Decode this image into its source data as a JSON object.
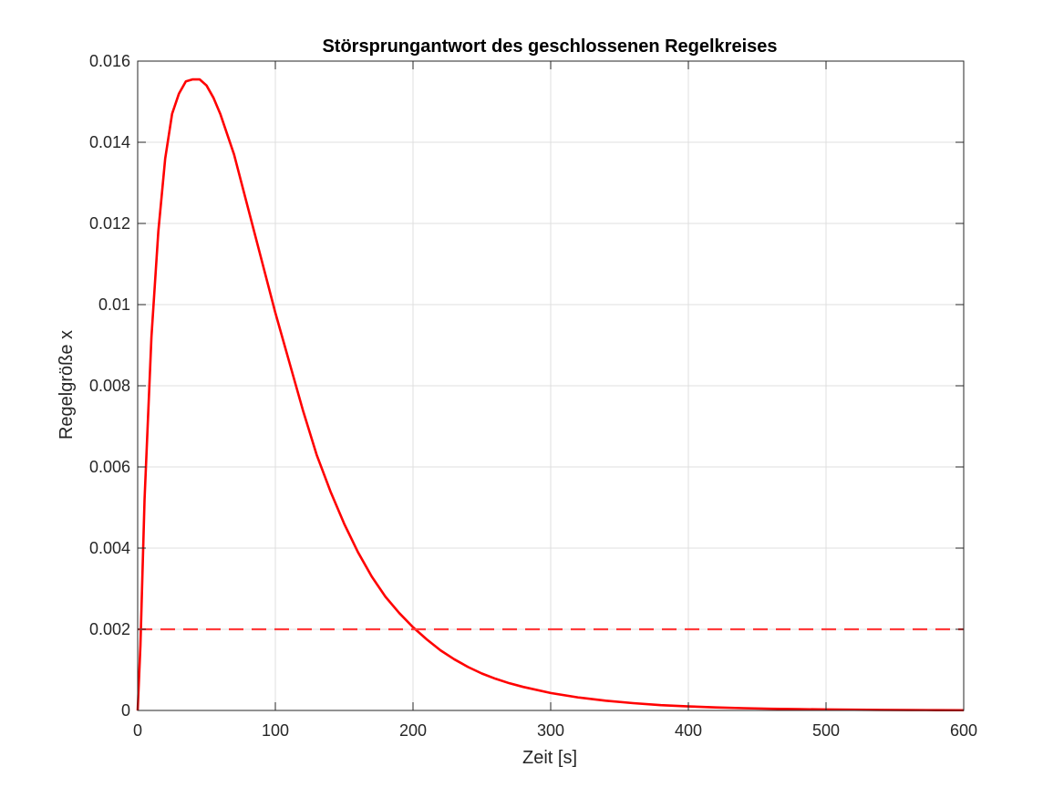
{
  "chart_data": {
    "type": "line",
    "title": "Störsprungantwort des geschlossenen Regelkreises",
    "xlabel": "Zeit [s]",
    "ylabel": "Regelgröße x",
    "xlim": [
      0,
      600
    ],
    "ylim": [
      0,
      0.016
    ],
    "grid": true,
    "xticks": [
      0,
      100,
      200,
      300,
      400,
      500,
      600
    ],
    "xtick_labels": [
      "0",
      "100",
      "200",
      "300",
      "400",
      "500",
      "600"
    ],
    "yticks": [
      0,
      0.002,
      0.004,
      0.006,
      0.008,
      0.01,
      0.012,
      0.014,
      0.016
    ],
    "ytick_labels": [
      "0",
      "0.002",
      "0.004",
      "0.006",
      "0.008",
      "0.01",
      "0.012",
      "0.014",
      "0.016"
    ],
    "series": [
      {
        "style": "solid",
        "color": "#ff0000",
        "x": [
          0,
          2,
          5,
          10,
          15,
          20,
          25,
          30,
          35,
          40,
          45,
          50,
          55,
          60,
          70,
          80,
          90,
          100,
          110,
          120,
          130,
          140,
          150,
          160,
          170,
          180,
          190,
          200,
          210,
          220,
          230,
          240,
          250,
          260,
          270,
          280,
          300,
          320,
          340,
          360,
          380,
          400,
          420,
          440,
          460,
          480,
          500,
          520,
          540,
          560,
          580,
          600
        ],
        "values": [
          0,
          0.0016,
          0.0052,
          0.0092,
          0.0118,
          0.0136,
          0.0147,
          0.0152,
          0.0155,
          0.01555,
          0.01555,
          0.0154,
          0.0151,
          0.0147,
          0.0137,
          0.0124,
          0.0111,
          0.0098,
          0.0086,
          0.0074,
          0.0063,
          0.0054,
          0.0046,
          0.0039,
          0.0033,
          0.0028,
          0.0024,
          0.00205,
          0.00175,
          0.00148,
          0.00126,
          0.00107,
          0.00091,
          0.00078,
          0.00067,
          0.00058,
          0.00043,
          0.00032,
          0.00024,
          0.00018,
          0.00013,
          0.0001,
          7.5e-05,
          5.6e-05,
          4.2e-05,
          3.2e-05,
          2.4e-05,
          1.8e-05,
          1.3e-05,
          1e-05,
          7.5e-06,
          5.5e-06
        ]
      },
      {
        "style": "dashed",
        "color": "#ff3b3b",
        "x": [
          0,
          600
        ],
        "values": [
          0.002,
          0.002
        ]
      }
    ]
  }
}
